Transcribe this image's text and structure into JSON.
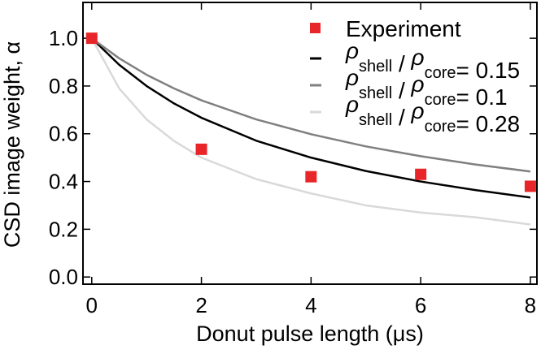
{
  "chart_data": {
    "type": "scatter-line",
    "xlabel": "Donut pulse length (μs)",
    "ylabel": "CSD image weight, α",
    "xlim": [
      -0.16,
      8.12
    ],
    "ylim": [
      -0.03,
      1.15
    ],
    "xticks": [
      0,
      2,
      4,
      6,
      8
    ],
    "yticks": [
      {
        "value": 0,
        "label": "0.0"
      },
      0.2,
      0.4,
      0.6,
      0.8,
      {
        "value": 1,
        "label": "1.0"
      }
    ],
    "scatter": {
      "name": "Experiment",
      "color": "#e8262a",
      "x": [
        0,
        2,
        4,
        6,
        8
      ],
      "values": [
        1.0,
        0.535,
        0.42,
        0.43,
        0.38
      ]
    },
    "x": [
      0,
      0.5,
      1,
      1.5,
      2,
      3,
      4,
      5,
      6,
      7,
      8
    ],
    "series": [
      {
        "name": "ρshell / ρcore= 0.15",
        "color": "#000000",
        "values": [
          1,
          0.889,
          0.8,
          0.727,
          0.667,
          0.571,
          0.5,
          0.444,
          0.4,
          0.364,
          0.333
        ]
      },
      {
        "name": "ρshell / ρcore= 0.1",
        "color": "#808080",
        "values": [
          1,
          0.916,
          0.847,
          0.79,
          0.74,
          0.66,
          0.598,
          0.547,
          0.506,
          0.471,
          0.442
        ]
      },
      {
        "name": "ρshell / ρcore= 0.28",
        "color": "#d9d9d9",
        "values": [
          1,
          0.79,
          0.66,
          0.57,
          0.5,
          0.41,
          0.35,
          0.3,
          0.27,
          0.25,
          0.22
        ]
      }
    ]
  }
}
